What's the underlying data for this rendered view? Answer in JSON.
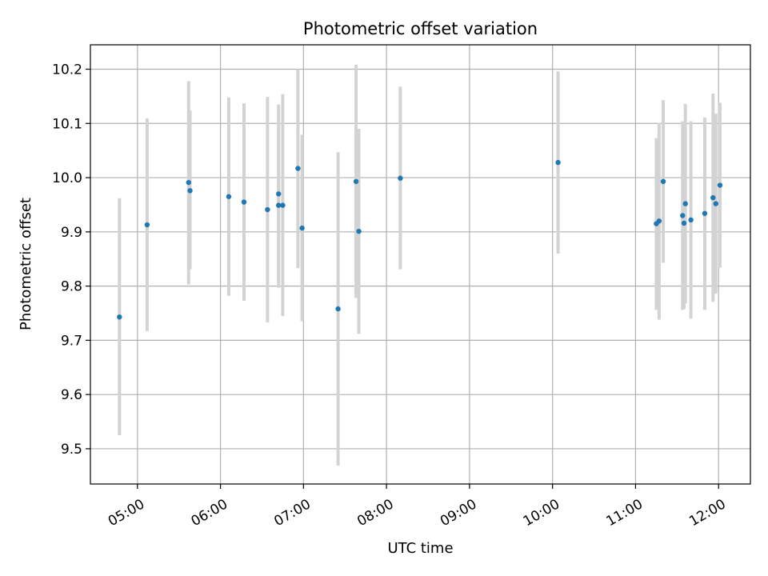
{
  "chart_data": {
    "type": "scatter",
    "title": "Photometric offset variation",
    "xlabel": "UTC time",
    "ylabel": "Photometric offset",
    "x_unit": "time of day (UTC)",
    "xlim": [
      "04:26",
      "12:23"
    ],
    "ylim": [
      9.435,
      10.245
    ],
    "x_ticks": [
      "05:00",
      "06:00",
      "07:00",
      "08:00",
      "09:00",
      "10:00",
      "11:00",
      "12:00"
    ],
    "y_ticks": [
      "9.5",
      "9.6",
      "9.7",
      "9.8",
      "9.9",
      "10.0",
      "10.1",
      "10.2"
    ],
    "grid": true,
    "legend": "none",
    "colors": {
      "point": "#1f77b4",
      "errorbar": "#d3d3d3",
      "grid": "#b0b0b0"
    },
    "series": [
      {
        "points": [
          {
            "x": "04:47",
            "y": 9.743,
            "y_low": 9.525,
            "y_high": 9.962
          },
          {
            "x": "05:07",
            "y": 9.913,
            "y_low": 9.717,
            "y_high": 10.109
          },
          {
            "x": "05:37",
            "y": 9.991,
            "y_low": 9.803,
            "y_high": 10.178
          },
          {
            "x": "05:38",
            "y": 9.976,
            "y_low": 9.831,
            "y_high": 10.124
          },
          {
            "x": "06:06",
            "y": 9.965,
            "y_low": 9.782,
            "y_high": 10.148
          },
          {
            "x": "06:17",
            "y": 9.955,
            "y_low": 9.773,
            "y_high": 10.137
          },
          {
            "x": "06:34",
            "y": 9.941,
            "y_low": 9.733,
            "y_high": 10.149
          },
          {
            "x": "06:42",
            "y": 9.97,
            "y_low": 9.804,
            "y_high": 10.135
          },
          {
            "x": "06:42",
            "y": 9.949,
            "y_low": 9.797,
            "y_high": 10.101
          },
          {
            "x": "06:45",
            "y": 9.949,
            "y_low": 9.745,
            "y_high": 10.154
          },
          {
            "x": "06:56",
            "y": 10.017,
            "y_low": 9.833,
            "y_high": 10.2
          },
          {
            "x": "06:59",
            "y": 9.907,
            "y_low": 9.735,
            "y_high": 10.079
          },
          {
            "x": "07:25",
            "y": 9.758,
            "y_low": 9.469,
            "y_high": 10.047
          },
          {
            "x": "07:38",
            "y": 9.993,
            "y_low": 9.778,
            "y_high": 10.208
          },
          {
            "x": "07:40",
            "y": 9.901,
            "y_low": 9.712,
            "y_high": 10.09
          },
          {
            "x": "08:10",
            "y": 9.999,
            "y_low": 9.831,
            "y_high": 10.168
          },
          {
            "x": "10:04",
            "y": 10.028,
            "y_low": 9.86,
            "y_high": 10.196
          },
          {
            "x": "11:15",
            "y": 9.915,
            "y_low": 9.756,
            "y_high": 10.073
          },
          {
            "x": "11:17",
            "y": 9.92,
            "y_low": 9.738,
            "y_high": 10.101
          },
          {
            "x": "11:20",
            "y": 9.993,
            "y_low": 9.843,
            "y_high": 10.143
          },
          {
            "x": "11:34",
            "y": 9.93,
            "y_low": 9.756,
            "y_high": 10.104
          },
          {
            "x": "11:35",
            "y": 9.916,
            "y_low": 9.758,
            "y_high": 10.075
          },
          {
            "x": "11:36",
            "y": 9.952,
            "y_low": 9.768,
            "y_high": 10.136
          },
          {
            "x": "11:40",
            "y": 9.922,
            "y_low": 9.74,
            "y_high": 10.104
          },
          {
            "x": "11:50",
            "y": 9.934,
            "y_low": 9.756,
            "y_high": 10.111
          },
          {
            "x": "11:56",
            "y": 9.963,
            "y_low": 9.771,
            "y_high": 10.155
          },
          {
            "x": "11:58",
            "y": 9.952,
            "y_low": 9.786,
            "y_high": 10.118
          },
          {
            "x": "12:01",
            "y": 9.986,
            "y_low": 9.834,
            "y_high": 10.138
          }
        ]
      }
    ]
  }
}
